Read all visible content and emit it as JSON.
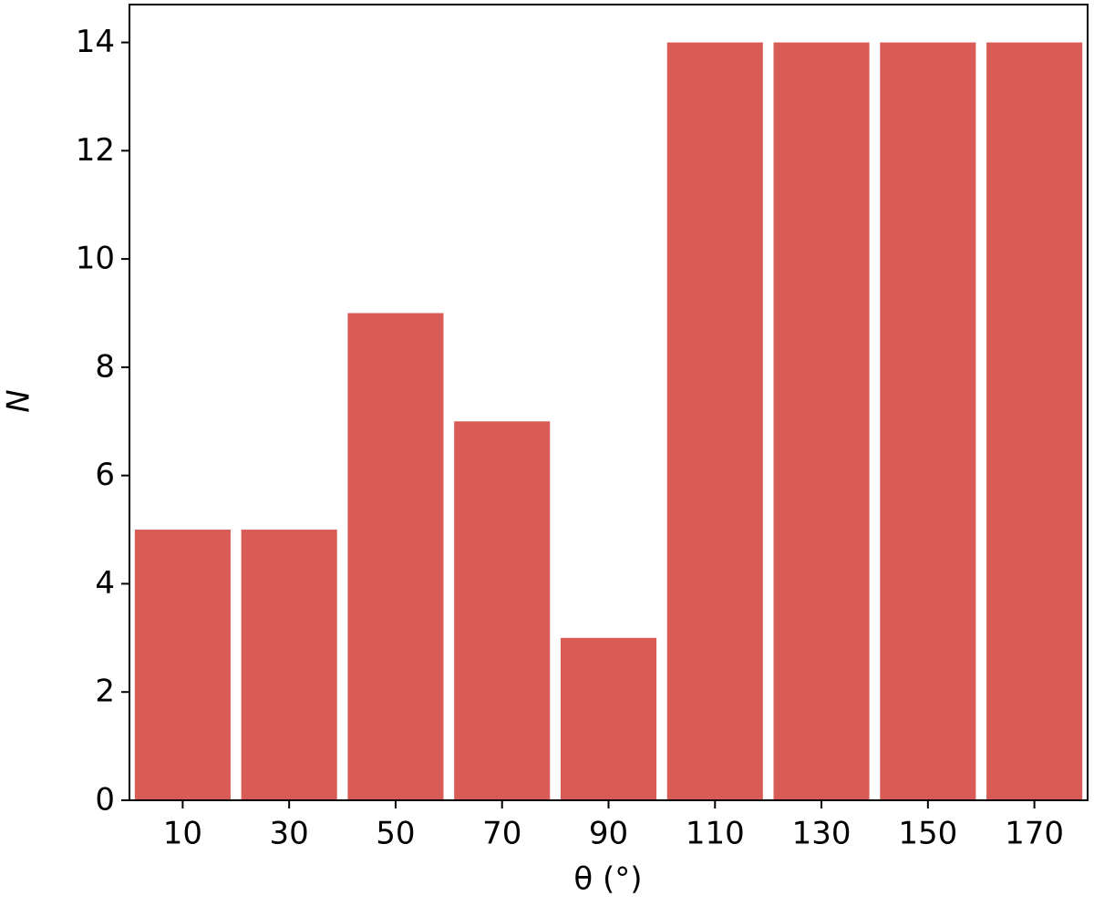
{
  "chart_data": {
    "type": "histogram",
    "xlabel": "θ   (°)",
    "ylabel": "N",
    "bins": [
      0,
      20,
      40,
      60,
      80,
      100,
      120,
      140,
      160,
      180
    ],
    "values": [
      5,
      5,
      9,
      7,
      3,
      14,
      14,
      14,
      14
    ],
    "color": "#d95b55",
    "xlim": [
      0,
      180
    ],
    "xticks": [
      10,
      30,
      50,
      70,
      90,
      110,
      130,
      150,
      170
    ],
    "ylim": [
      0,
      14.7
    ],
    "yticks": [
      0,
      2,
      4,
      6,
      8,
      10,
      12,
      14
    ]
  }
}
